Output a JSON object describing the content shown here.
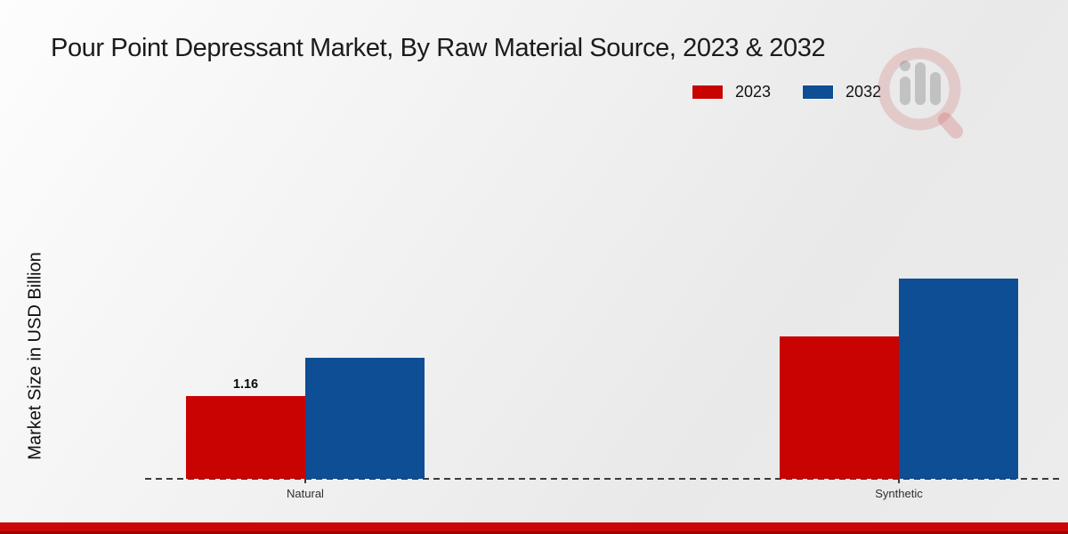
{
  "title": "Pour Point Depressant Market, By Raw Material Source, 2023 & 2032",
  "y_axis_label": "Market Size in USD Billion",
  "legend": {
    "items": [
      {
        "label": "2023",
        "color": "#c90202"
      },
      {
        "label": "2032",
        "color": "#0d4e94"
      }
    ]
  },
  "colors": {
    "series_2023": "#c90202",
    "series_2032": "#0d4e94",
    "footer_accent": "#c00000",
    "axis": "#3c3c3c"
  },
  "watermark": {
    "name": "magnifier-bar-chart-logo"
  },
  "chart_data": {
    "type": "bar",
    "categories": [
      "Natural",
      "Synthetic"
    ],
    "series": [
      {
        "name": "2023",
        "color": "#c90202",
        "values": [
          1.16,
          2.0
        ]
      },
      {
        "name": "2032",
        "color": "#0d4e94",
        "values": [
          1.7,
          2.81
        ]
      }
    ],
    "data_labels": [
      {
        "series": "2023",
        "category": "Natural",
        "text": "1.16"
      }
    ],
    "title": "Pour Point Depressant Market, By Raw Material Source, 2023 & 2032",
    "xlabel": "",
    "ylabel": "Market Size in USD Billion",
    "ylim": [
      0,
      3.5
    ],
    "grid": false,
    "legend_position": "top-right",
    "baseline_style": "dashed"
  }
}
